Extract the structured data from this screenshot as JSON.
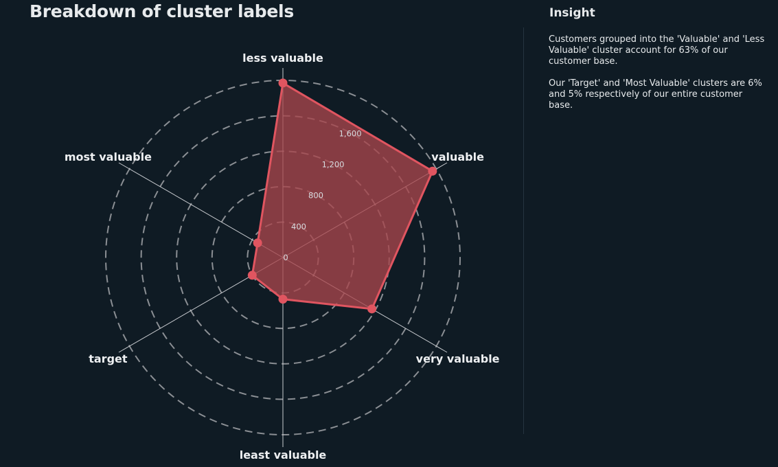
{
  "title": "Breakdown of cluster labels",
  "insight": {
    "heading": "Insight",
    "paragraph1": "Customers grouped into the 'Valuable' and 'Less Valuable' cluster account for 63% of our customer base.",
    "paragraph2": "Our 'Target' and 'Most Valuable' clusters are 6% and 5% respectively of our entire customer base."
  },
  "colors": {
    "background": "#0f1b24",
    "series": "#e05560",
    "fill": "#a8454c",
    "grid": "#8b8f94",
    "spoke": "#c9ccd0"
  },
  "chart_data": {
    "type": "radar",
    "categories": [
      "less valuable",
      "valuable",
      "very valuable",
      "least valuable",
      "target",
      "most valuable"
    ],
    "values": [
      1970,
      1950,
      1160,
      470,
      400,
      330
    ],
    "radial_ticks": [
      0,
      400,
      800,
      1200,
      1600
    ],
    "radial_tick_labels": [
      "0",
      "400",
      "800",
      "1,200",
      "1,600"
    ],
    "grid_rings": [
      400,
      800,
      1200,
      1600,
      2000
    ],
    "rmax": 2000,
    "grid": true,
    "grid_style": "dashed circles"
  }
}
